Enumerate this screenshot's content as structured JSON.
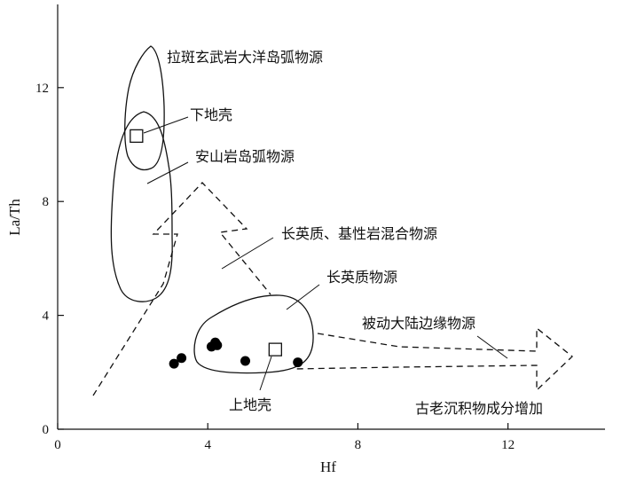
{
  "chart_data": {
    "type": "scatter",
    "xlabel": "Hf",
    "ylabel": "La/Th",
    "xlim": [
      0,
      15
    ],
    "ylim": [
      0,
      14.5
    ],
    "x_ticks": [
      0,
      4,
      8,
      12
    ],
    "y_ticks": [
      0,
      4,
      8,
      12
    ],
    "points": [
      {
        "x": 3.1,
        "y": 2.3
      },
      {
        "x": 3.3,
        "y": 2.5
      },
      {
        "x": 4.1,
        "y": 2.9
      },
      {
        "x": 4.2,
        "y": 3.05
      },
      {
        "x": 4.25,
        "y": 2.95
      },
      {
        "x": 5.0,
        "y": 2.4
      },
      {
        "x": 6.4,
        "y": 2.35
      }
    ],
    "reference_points": [
      {
        "label": "下地壳",
        "x": 2.1,
        "y": 10.3
      },
      {
        "label": "上地壳",
        "x": 5.8,
        "y": 2.8
      }
    ],
    "fields": [
      {
        "label": "拉斑玄武岩大洋岛弧物源"
      },
      {
        "label": "安山岩岛弧物源"
      },
      {
        "label": "长英质物源"
      },
      {
        "label": "长英质、基性岩混合物源"
      }
    ],
    "trends": [
      {
        "label": "被动大陆边缘物源"
      },
      {
        "label": "古老沉积物成分增加"
      }
    ]
  }
}
